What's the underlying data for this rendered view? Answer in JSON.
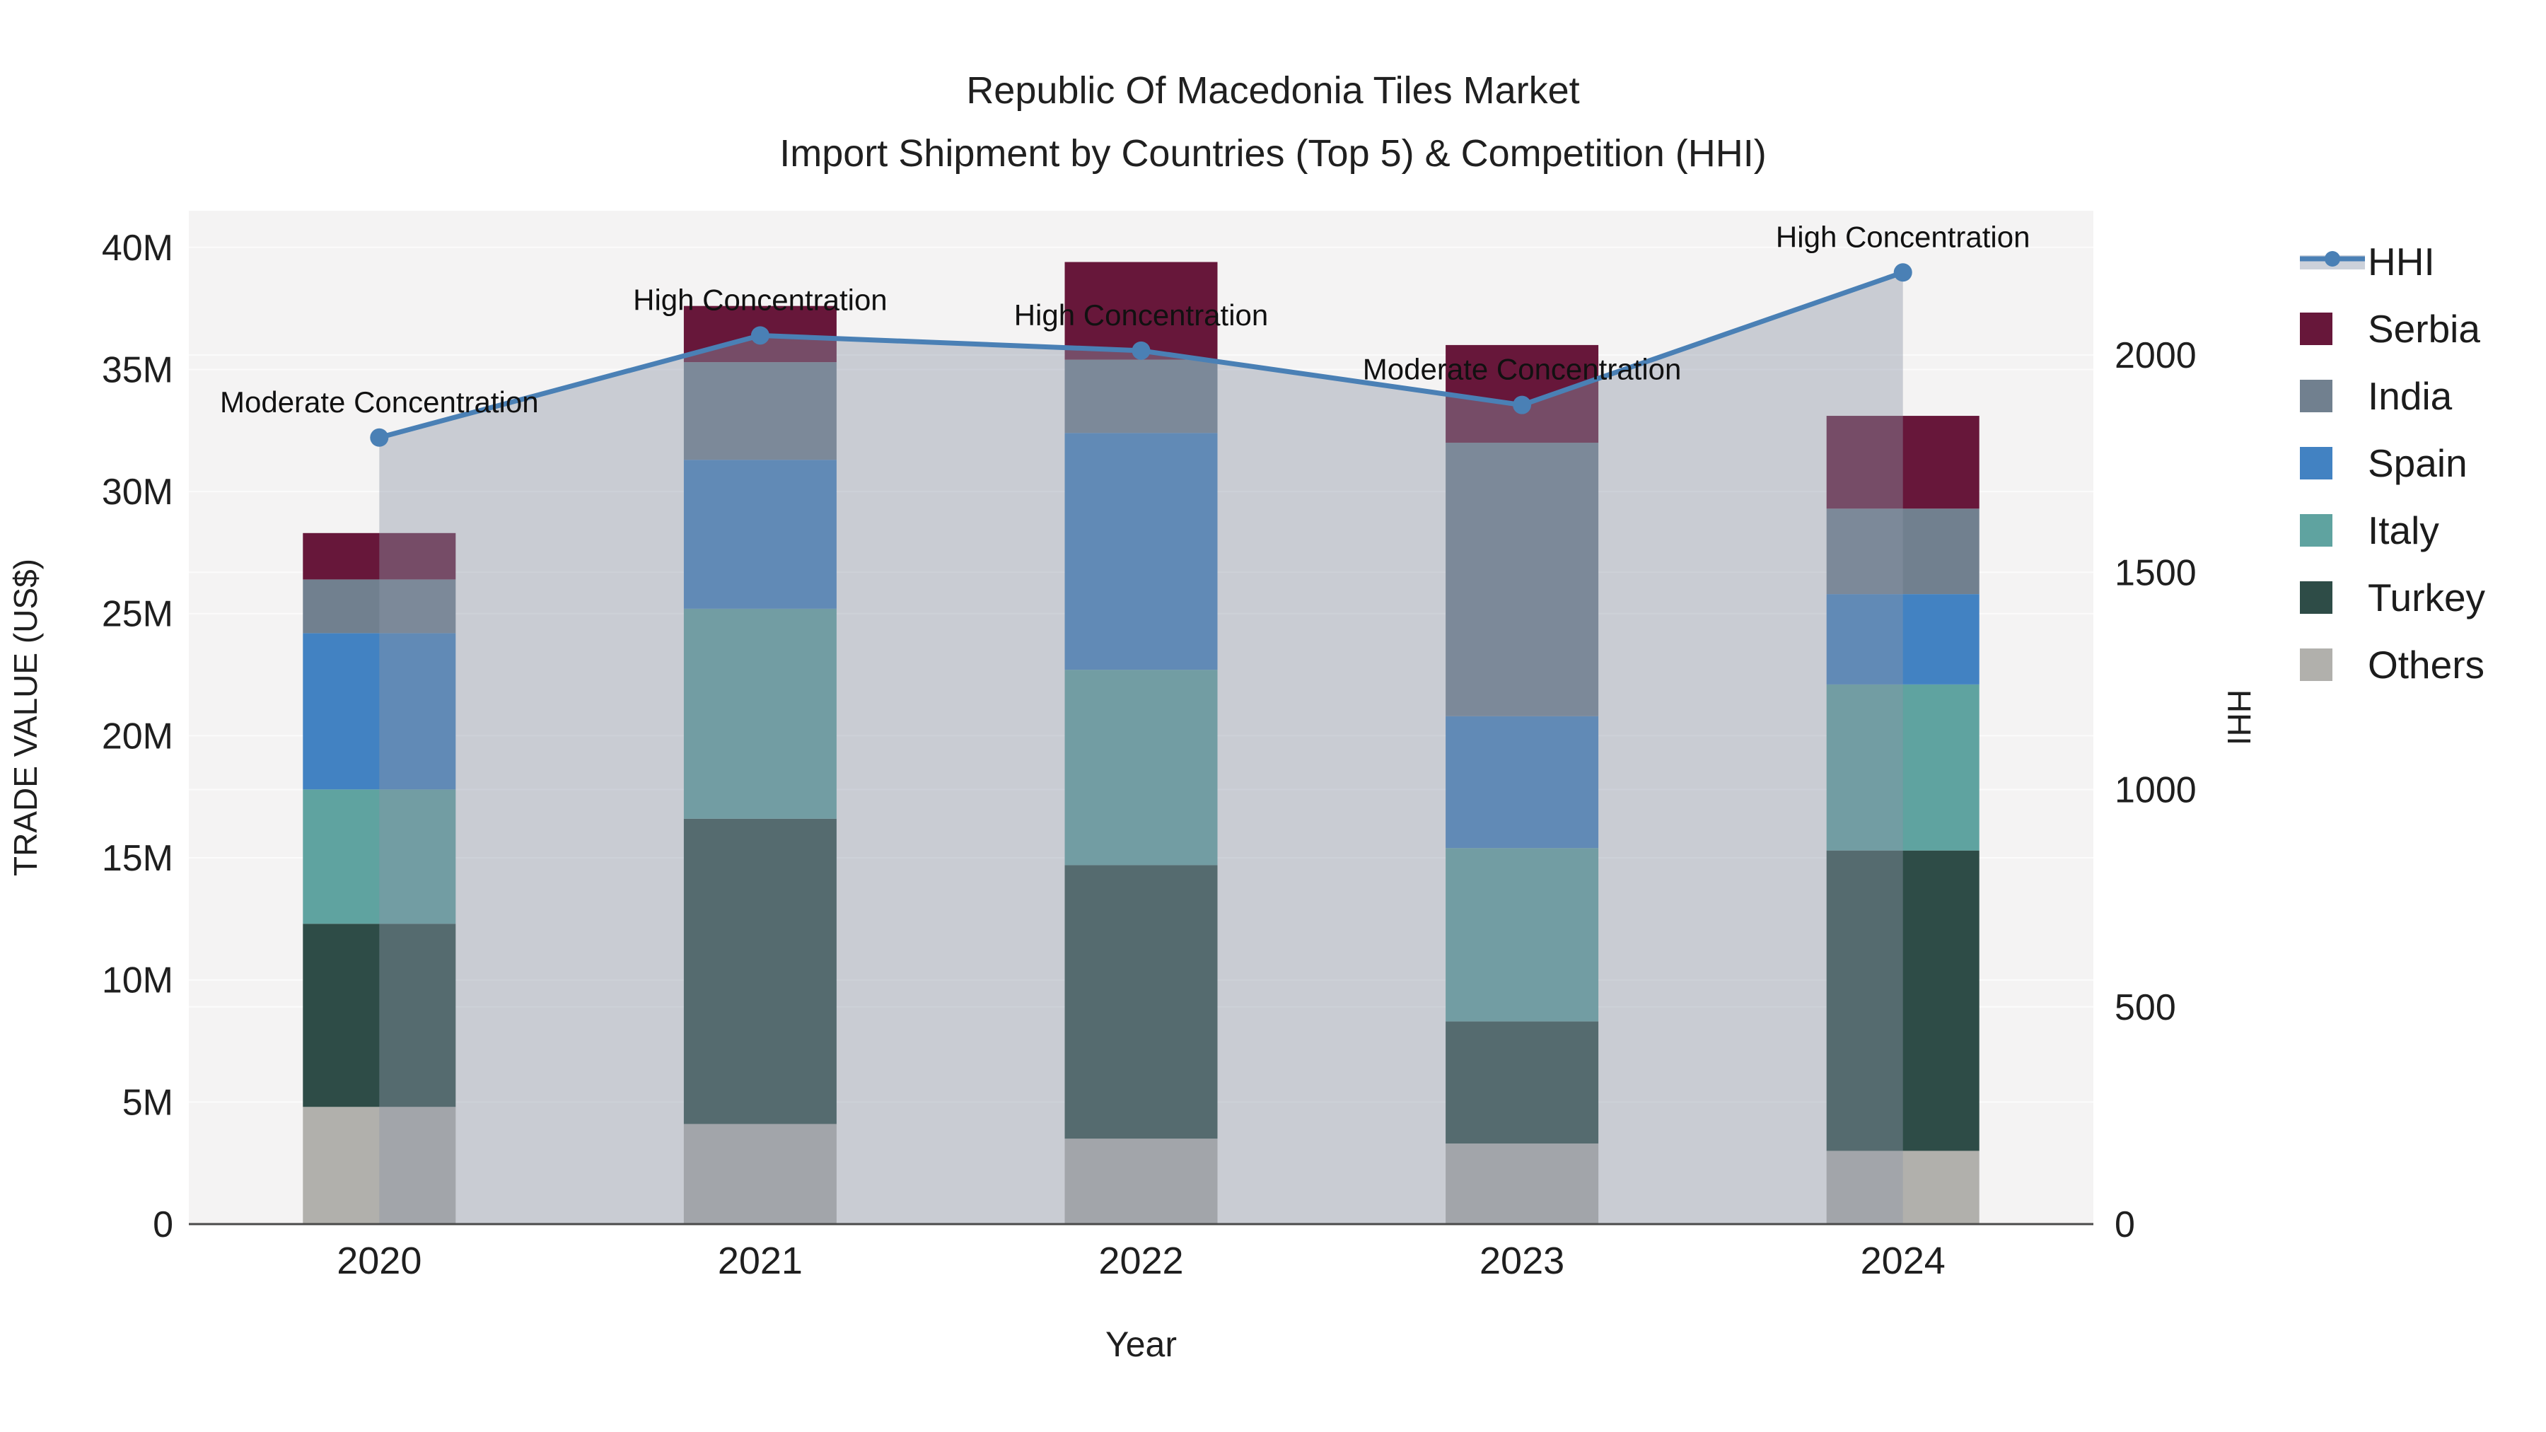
{
  "title": {
    "line1": "Republic Of Macedonia Tiles Market",
    "line2": "Import Shipment by Countries (Top 5) & Competition (HHI)"
  },
  "chart_data": {
    "type": "combo-stacked-bar-line",
    "categories": [
      "2020",
      "2021",
      "2022",
      "2023",
      "2024"
    ],
    "bar_unit": "US$ millions",
    "bar_series": [
      {
        "name": "Others",
        "color": "#b1b0ac",
        "values": [
          4.8,
          4.1,
          3.5,
          3.3,
          3.0
        ]
      },
      {
        "name": "Turkey",
        "color": "#2e4c47",
        "values": [
          7.5,
          12.5,
          11.2,
          5.0,
          12.3
        ]
      },
      {
        "name": "Italy",
        "color": "#5fa3a0",
        "values": [
          5.5,
          8.6,
          8.0,
          7.1,
          6.8
        ]
      },
      {
        "name": "Spain",
        "color": "#4282c2",
        "values": [
          6.4,
          6.1,
          9.7,
          5.4,
          3.7
        ]
      },
      {
        "name": "India",
        "color": "#71808f",
        "values": [
          2.2,
          4.0,
          3.0,
          11.2,
          3.5
        ]
      },
      {
        "name": "Serbia",
        "color": "#67173a",
        "values": [
          1.9,
          2.3,
          4.0,
          4.0,
          3.8
        ]
      }
    ],
    "line_series": {
      "name": "HHI",
      "color": "#4a80b5",
      "area_fill": "rgba(140,150,168,0.42)",
      "values": [
        1810,
        2045,
        2010,
        1885,
        2190
      ]
    },
    "annotations": [
      "Moderate Concentration",
      "High Concentration",
      "High Concentration",
      "Moderate Concentration",
      "High Concentration"
    ],
    "legend_order": [
      "HHI",
      "Serbia",
      "India",
      "Spain",
      "Italy",
      "Turkey",
      "Others"
    ],
    "axes": {
      "x": {
        "title": "Year"
      },
      "y_left": {
        "title": "TRADE VALUE (US$)",
        "tick_values": [
          0,
          5,
          10,
          15,
          20,
          25,
          30,
          35,
          40
        ],
        "tick_labels": [
          "0",
          "5M",
          "10M",
          "15M",
          "20M",
          "25M",
          "30M",
          "35M",
          "40M"
        ],
        "range_max": 41.5
      },
      "y_right": {
        "title": "HHI",
        "tick_values": [
          0,
          500,
          1000,
          1500,
          2000
        ],
        "tick_labels": [
          "0",
          "500",
          "1000",
          "1500",
          "2000"
        ],
        "range_max": 2332
      }
    },
    "colors": {
      "plot_bg": "#f4f3f3",
      "grid": "#fbfbfb",
      "axis_line": "#4a4a4a",
      "tick_text": "#1f1f1f",
      "annotation_text": "#111111",
      "legend_band": "#ccd1da"
    }
  }
}
